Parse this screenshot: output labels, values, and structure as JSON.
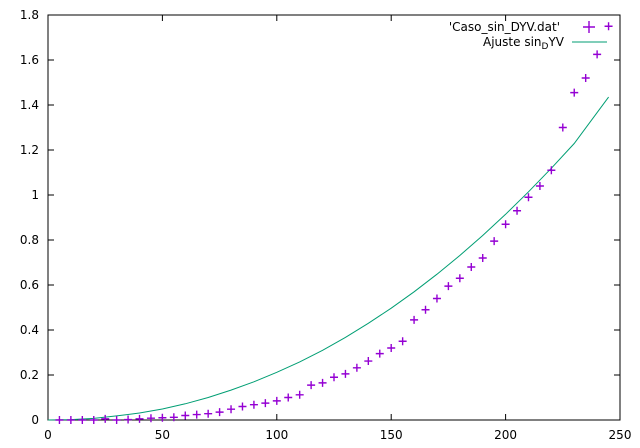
{
  "chart_data": {
    "type": "scatter",
    "title": "",
    "xlabel": "",
    "ylabel": "",
    "xlim": [
      0,
      250
    ],
    "ylim": [
      0,
      1.8
    ],
    "x_ticks": [
      "0",
      "50",
      "100",
      "150",
      "200",
      "250"
    ],
    "y_ticks": [
      "0",
      "0.2",
      "0.4",
      "0.6",
      "0.8",
      "1",
      "1.2",
      "1.4",
      "1.6",
      "1.8"
    ],
    "grid": false,
    "legend_position": "top-right",
    "series": [
      {
        "name": "'Caso_sin_DYV.dat'",
        "style": "points",
        "marker": "plus",
        "color": "#9400d3",
        "x": [
          5,
          10,
          15,
          20,
          25,
          30,
          35,
          40,
          45,
          50,
          55,
          60,
          65,
          70,
          75,
          80,
          85,
          90,
          95,
          100,
          105,
          110,
          115,
          120,
          125,
          130,
          135,
          140,
          145,
          150,
          155,
          160,
          165,
          170,
          175,
          180,
          185,
          190,
          195,
          200,
          205,
          210,
          215,
          220,
          225,
          230,
          235,
          240,
          245
        ],
        "y": [
          0.0,
          0.0,
          0.0,
          0.0,
          0.005,
          0.0,
          0.002,
          0.005,
          0.008,
          0.01,
          0.012,
          0.02,
          0.024,
          0.028,
          0.035,
          0.048,
          0.06,
          0.068,
          0.075,
          0.085,
          0.1,
          0.112,
          0.155,
          0.165,
          0.19,
          0.205,
          0.232,
          0.262,
          0.295,
          0.32,
          0.35,
          0.445,
          0.49,
          0.54,
          0.595,
          0.63,
          0.68,
          0.72,
          0.795,
          0.87,
          0.93,
          0.99,
          1.04,
          1.11,
          1.3,
          1.455,
          1.52,
          1.625,
          1.75
        ]
      },
      {
        "name": "Ajuste sin",
        "name_subscript": "D",
        "name_suffix": "YV",
        "style": "line",
        "color": "#009e73",
        "x": [
          0,
          10,
          20,
          30,
          40,
          50,
          60,
          70,
          80,
          90,
          100,
          110,
          120,
          130,
          140,
          150,
          160,
          170,
          180,
          190,
          200,
          210,
          220,
          230,
          245
        ],
        "y": [
          0.0,
          0.002,
          0.007,
          0.018,
          0.031,
          0.049,
          0.072,
          0.1,
          0.133,
          0.17,
          0.212,
          0.258,
          0.31,
          0.367,
          0.43,
          0.497,
          0.57,
          0.648,
          0.731,
          0.82,
          0.914,
          1.014,
          1.119,
          1.229,
          1.435
        ]
      }
    ]
  }
}
